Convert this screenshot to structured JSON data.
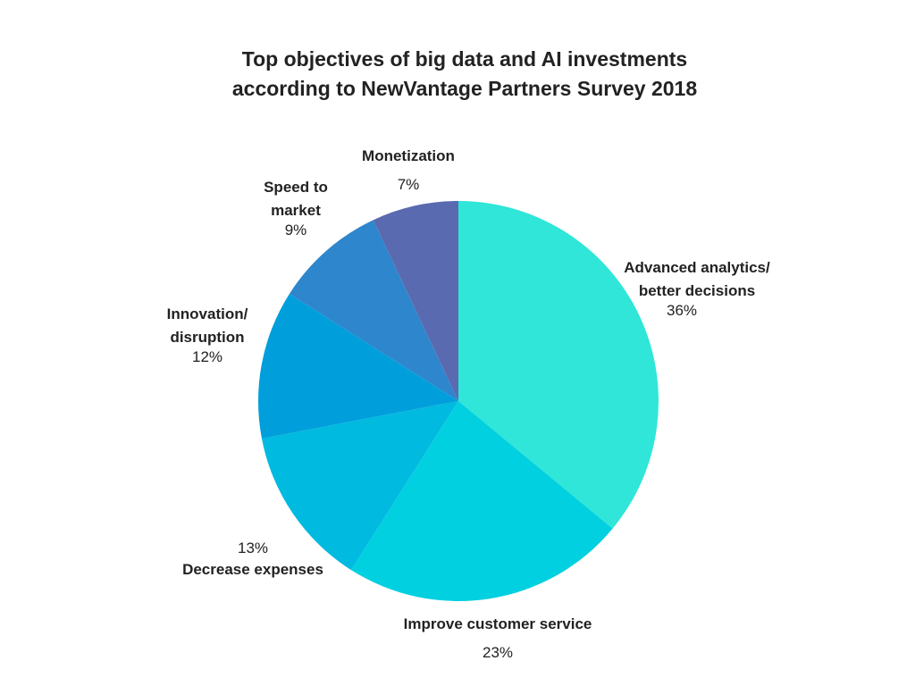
{
  "chart_data": {
    "type": "pie",
    "title": [
      "Top objectives of big data and AI investments",
      "according to NewVantage Partners Survey 2018"
    ],
    "slices": [
      {
        "name_lines": [
          "Advanced analytics/",
          "better decisions"
        ],
        "value": 36,
        "value_label": "36%",
        "color": "#2fe6d8"
      },
      {
        "name_lines": [
          "Improve customer service"
        ],
        "value": 23,
        "value_label": "23%",
        "color": "#00d0e0"
      },
      {
        "name_lines": [
          "Decrease expenses"
        ],
        "value": 13,
        "value_label": "13%",
        "color": "#00bae0"
      },
      {
        "name_lines": [
          "Innovation/",
          "disruption"
        ],
        "value": 12,
        "value_label": "12%",
        "color": "#009fdc"
      },
      {
        "name_lines": [
          "Speed to",
          "market"
        ],
        "value": 9,
        "value_label": "9%",
        "color": "#2e86cd"
      },
      {
        "name_lines": [
          "Monetization"
        ],
        "value": 7,
        "value_label": "7%",
        "color": "#5a6ab0"
      }
    ]
  }
}
